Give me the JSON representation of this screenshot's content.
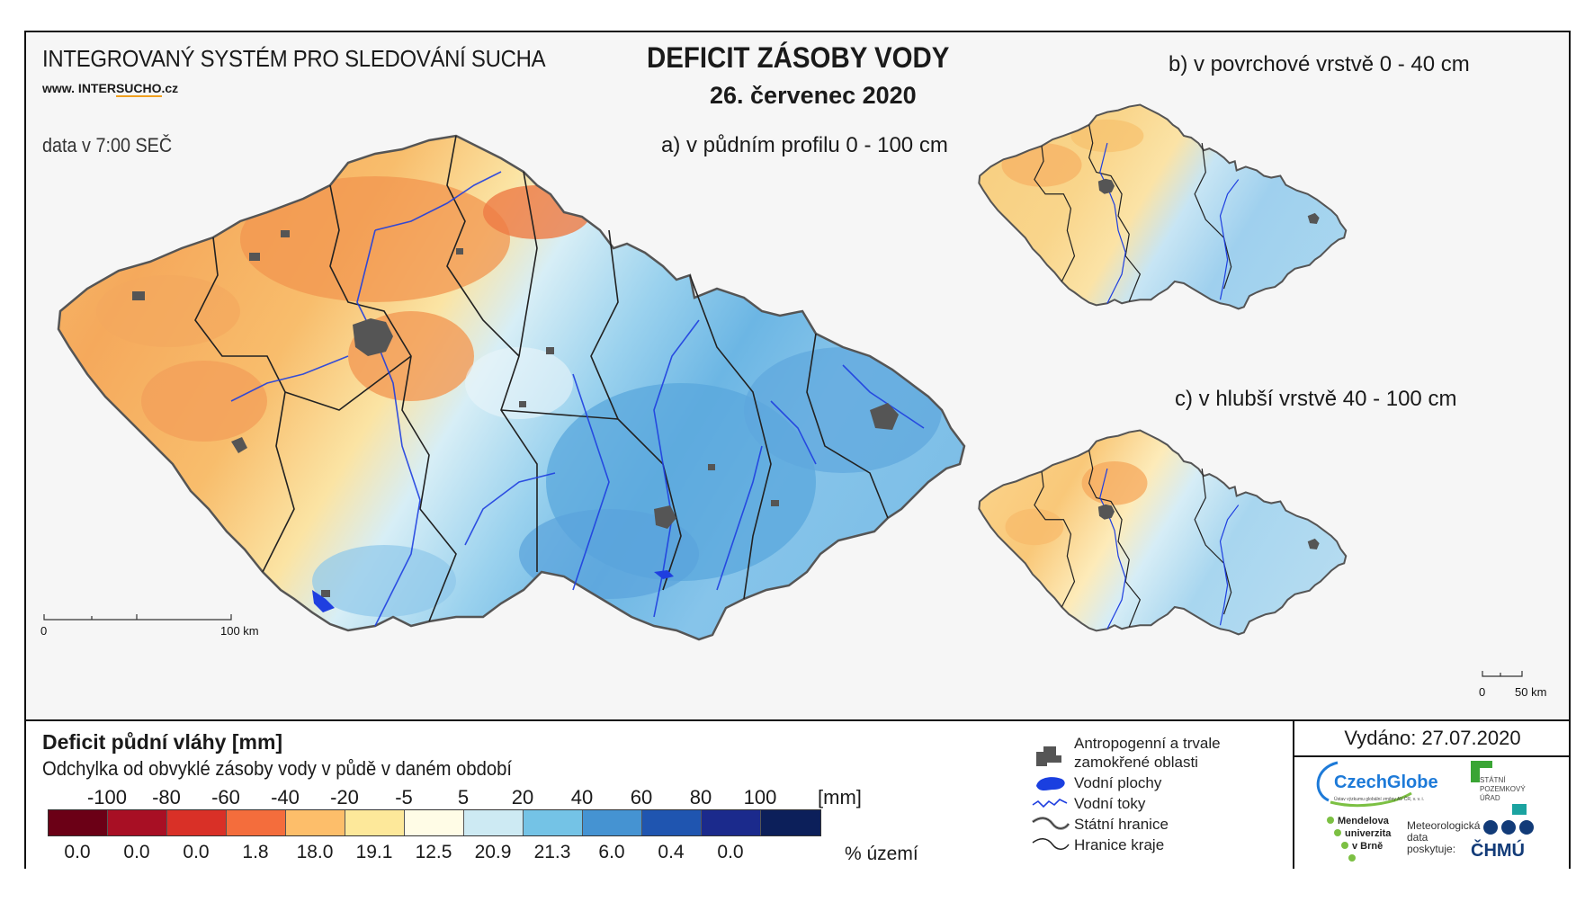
{
  "header": {
    "system_title": "INTEGROVANÝ SYSTÉM PRO SLEDOVÁNÍ SUCHA",
    "website_prefix": "www. INTER",
    "website_highlight": "SUCHO",
    "website_suffix": ".cz",
    "data_time": "data v 7:00 SEČ",
    "main_title": "DEFICIT ZÁSOBY VODY",
    "date": "26. červenec 2020"
  },
  "maps": {
    "a": {
      "label": "a) v půdním profilu 0 - 100 cm",
      "scale_start": "0",
      "scale_end": "100 km"
    },
    "b": {
      "label": "b) v povrchové vrstvě 0 - 40 cm"
    },
    "c": {
      "label": "c) v hlubší vrstvě 40 - 100 cm",
      "scale_start": "0",
      "scale_end": "50 km"
    }
  },
  "legend": {
    "title": "Deficit půdní vláhy  [mm]",
    "subtitle": "Odchylka od obvyklé zásoby vody v půdě v daném období",
    "ticks": [
      "-100",
      "-80",
      "-60",
      "-40",
      "-20",
      "-5",
      "5",
      "20",
      "40",
      "60",
      "80",
      "100"
    ],
    "unit": "[mm]",
    "colors": [
      "#6b0016",
      "#a80f24",
      "#d93027",
      "#f46d3c",
      "#fdbe6a",
      "#fde89a",
      "#fffce6",
      "#cdeaf3",
      "#74c3e6",
      "#4593d2",
      "#1f55b0",
      "#1b2a8c",
      "#0c1f5a"
    ],
    "percent_values": [
      "0.0",
      "0.0",
      "0.0",
      "1.8",
      "18.0",
      "19.1",
      "12.5",
      "20.9",
      "21.3",
      "6.0",
      "0.4",
      "0.0"
    ],
    "percent_unit": "% území"
  },
  "map_key": {
    "urban": "Antropogenní a trvale zamokřené oblasti",
    "water_bodies": "Vodní plochy",
    "rivers": "Vodní toky",
    "state_border": "Státní hranice",
    "region_border": "Hranice kraje"
  },
  "issued": "Vydáno: 27.07.2020",
  "logos": {
    "czechglobe": "CzechGlobe",
    "czechglobe_sub": "Ústav výzkumu globální změny AV ČR, v. v. i.",
    "spu_line1": "STÁTNÍ",
    "spu_line2": "POZEMKOVÝ",
    "spu_line3": "ÚŘAD",
    "mendel_line1": "Mendelova",
    "mendel_line2": "univerzita",
    "mendel_line3": "v Brně",
    "chmu_text_line1": "Meteorologická",
    "chmu_text_line2": "data",
    "chmu_text_line3": "poskytuje:",
    "chmu": "ČHMÚ"
  }
}
